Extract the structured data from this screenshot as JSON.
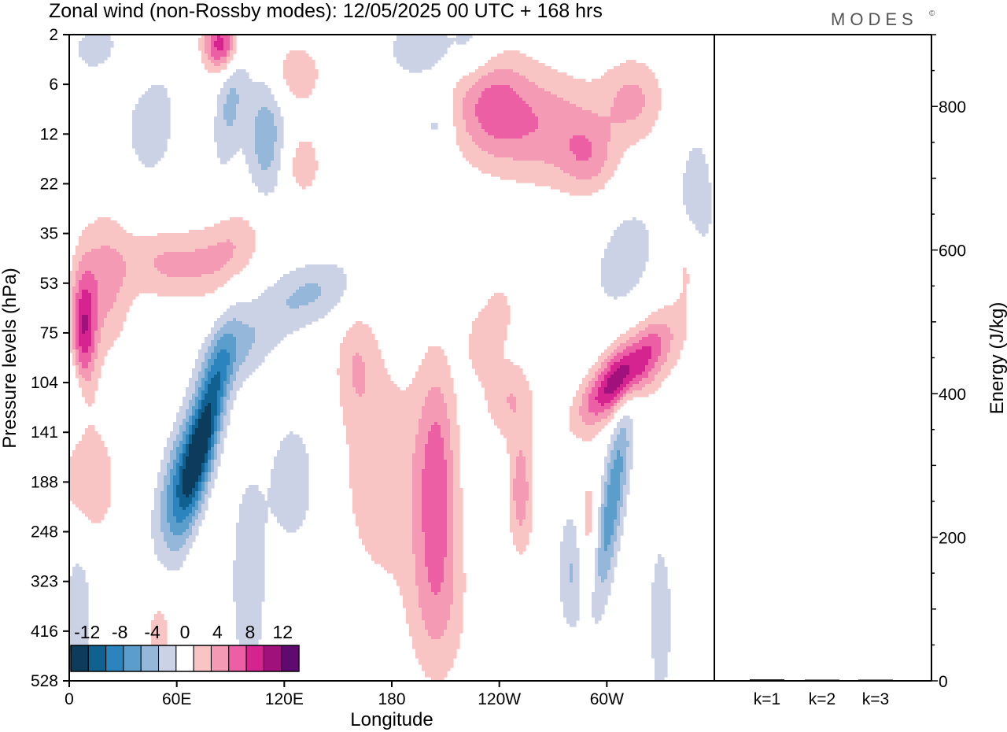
{
  "title": "Zonal wind (non-Rossby modes):  12/05/2025  00 UTC  + 168 hrs",
  "logo": "MODES",
  "logo_mark": "©",
  "chart_data": [
    {
      "type": "heatmap",
      "title": "Zonal wind (non-Rossby modes):  12/05/2025  00 UTC  + 168 hrs",
      "xlabel": "Longitude",
      "ylabel": "Pressure levels (hPa)",
      "x_ticks": [
        "0",
        "60E",
        "120E",
        "180",
        "120W",
        "60W"
      ],
      "x_tick_lon": [
        0,
        60,
        120,
        180,
        240,
        300
      ],
      "xlim": [
        0,
        360
      ],
      "y_ticks": [
        "2",
        "6",
        "12",
        "22",
        "35",
        "53",
        "75",
        "104",
        "141",
        "188",
        "248",
        "323",
        "416",
        "528"
      ],
      "y_axis": "top-to-bottom level index, 2 hPa at top, 528 hPa at bottom",
      "colorbar": {
        "labels": [
          "-12",
          "-8",
          "-4",
          "0",
          "4",
          "8",
          "12"
        ],
        "levels": [
          -14,
          -12,
          -10,
          -8,
          -6,
          -4,
          -2,
          2,
          4,
          6,
          8,
          10,
          12,
          14
        ],
        "colors": [
          "#0d3b5c",
          "#10618f",
          "#2b84bd",
          "#5b9dcb",
          "#94b7da",
          "#cbd2e6",
          "#ffffff",
          "#f9c4c4",
          "#f59ab5",
          "#ec5fa4",
          "#d5238f",
          "#a0117c",
          "#5f0a6e"
        ]
      },
      "features": [
        {
          "name": "strong easterly core",
          "lon": 75,
          "level": 141,
          "value": -10
        },
        {
          "name": "easterly core",
          "lon": 300,
          "level": 188,
          "value": -6
        },
        {
          "name": "westerly core",
          "lon": 300,
          "level": 104,
          "value": 8
        },
        {
          "name": "westerly core",
          "lon": 10,
          "level": 75,
          "value": 8
        },
        {
          "name": "westerly core",
          "lon": 85,
          "level": 2,
          "value": 8
        },
        {
          "name": "westerly band",
          "lon": 205,
          "level": 141,
          "value": 6
        },
        {
          "name": "westerly band",
          "lon": 230,
          "level": 8,
          "value": 6
        }
      ]
    },
    {
      "type": "bar",
      "ylabel": "Energy (J/kg)",
      "categories": [
        "k=1",
        "k=2",
        "k=3"
      ],
      "values": [
        2,
        1,
        0.5
      ],
      "ylim": [
        0,
        900
      ],
      "y_ticks": [
        "0",
        "200",
        "400",
        "600",
        "800"
      ]
    }
  ]
}
